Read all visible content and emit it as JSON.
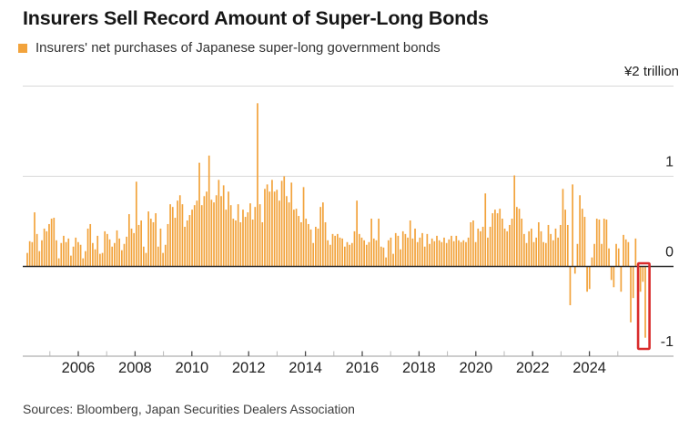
{
  "title": "Insurers Sell Record Amount of Super-Long Bonds",
  "legend": {
    "label": "Insurers' net purchases of Japanese super-long government bonds",
    "swatch_color": "#f2a33c"
  },
  "source_line": "Sources: Bloomberg, Japan Securities Dealers Association",
  "colors": {
    "bar": "#f2a33c",
    "highlight_box": "#d92b2b",
    "zero_line": "#2b2b2b",
    "gridline": "#d8d8d8",
    "axis_line": "#9b9b9b",
    "tick_labeled": "#4a4a4a",
    "tick_unlabeled": "#b8b8b8",
    "text": "#222222"
  },
  "chart_data": {
    "type": "bar",
    "title": "Insurers Sell Record Amount of Super-Long Bonds",
    "series_name": "Insurers' net purchases of Japanese super-long government bonds",
    "unit": "trillion yen",
    "frequency": "monthly",
    "x_start": "2004-04",
    "x_end": "2025-07",
    "ylim": [
      -1,
      2
    ],
    "grid": "horizontal",
    "legend_position": "top-left",
    "y_axis_top_label": "¥2 trillion",
    "y_tick_labels": [
      "1",
      "0",
      "-1"
    ],
    "y_tick_values": [
      1,
      0,
      -1
    ],
    "x_tick_years_start": 2005,
    "x_tick_years_end": 2025,
    "x_labeled_years": [
      2006,
      2008,
      2010,
      2012,
      2014,
      2016,
      2018,
      2020,
      2022,
      2024
    ],
    "highlight": {
      "covers_last_n_bars": 3,
      "color": "#d92b2b"
    },
    "values": [
      0.15,
      0.28,
      0.27,
      0.6,
      0.36,
      0.17,
      0.29,
      0.42,
      0.39,
      0.47,
      0.53,
      0.54,
      0.29,
      0.09,
      0.26,
      0.34,
      0.27,
      0.31,
      0.12,
      0.22,
      0.32,
      0.27,
      0.24,
      0.09,
      0.17,
      0.42,
      0.47,
      0.26,
      0.19,
      0.34,
      0.14,
      0.15,
      0.39,
      0.36,
      0.3,
      0.22,
      0.26,
      0.4,
      0.31,
      0.18,
      0.25,
      0.33,
      0.58,
      0.42,
      0.37,
      0.94,
      0.46,
      0.51,
      0.22,
      0.15,
      0.61,
      0.53,
      0.49,
      0.59,
      0.22,
      0.42,
      0.15,
      0.24,
      0.47,
      0.69,
      0.66,
      0.54,
      0.73,
      0.79,
      0.69,
      0.44,
      0.51,
      0.57,
      0.63,
      0.68,
      0.73,
      1.15,
      0.68,
      0.78,
      0.83,
      1.23,
      0.74,
      0.71,
      0.79,
      0.96,
      0.78,
      0.9,
      0.63,
      0.83,
      0.68,
      0.53,
      0.51,
      0.69,
      0.49,
      0.63,
      0.55,
      0.6,
      0.7,
      0.52,
      0.66,
      1.81,
      0.69,
      0.49,
      0.86,
      0.91,
      0.83,
      0.96,
      0.83,
      0.85,
      0.73,
      0.95,
      1.0,
      0.78,
      0.71,
      0.93,
      0.63,
      0.64,
      0.56,
      0.49,
      0.88,
      0.53,
      0.47,
      0.41,
      0.26,
      0.44,
      0.42,
      0.66,
      0.71,
      0.49,
      0.29,
      0.24,
      0.36,
      0.34,
      0.36,
      0.32,
      0.31,
      0.22,
      0.27,
      0.24,
      0.26,
      0.39,
      0.73,
      0.36,
      0.32,
      0.29,
      0.24,
      0.27,
      0.53,
      0.31,
      0.29,
      0.53,
      0.22,
      0.21,
      0.1,
      0.29,
      0.32,
      0.14,
      0.37,
      0.34,
      0.19,
      0.39,
      0.36,
      0.32,
      0.51,
      0.31,
      0.42,
      0.27,
      0.32,
      0.37,
      0.22,
      0.36,
      0.25,
      0.31,
      0.28,
      0.34,
      0.29,
      0.27,
      0.32,
      0.26,
      0.3,
      0.34,
      0.28,
      0.34,
      0.29,
      0.27,
      0.29,
      0.27,
      0.32,
      0.49,
      0.51,
      0.27,
      0.42,
      0.39,
      0.44,
      0.81,
      0.32,
      0.44,
      0.59,
      0.63,
      0.59,
      0.64,
      0.53,
      0.42,
      0.39,
      0.46,
      0.53,
      1.01,
      0.66,
      0.64,
      0.53,
      0.36,
      0.26,
      0.39,
      0.42,
      0.27,
      0.32,
      0.49,
      0.39,
      0.27,
      0.26,
      0.46,
      0.36,
      0.29,
      0.42,
      0.32,
      0.46,
      0.86,
      0.63,
      0.46,
      -0.43,
      0.91,
      -0.08,
      0.25,
      0.79,
      0.64,
      0.55,
      -0.28,
      -0.25,
      0.1,
      0.25,
      0.53,
      0.52,
      0.25,
      0.53,
      0.52,
      0.2,
      -0.15,
      -0.23,
      0.25,
      0.2,
      -0.28,
      0.35,
      0.3,
      0.27,
      -0.62,
      -0.35,
      0.31,
      -0.13,
      -0.28,
      -0.17,
      -0.79
    ]
  }
}
